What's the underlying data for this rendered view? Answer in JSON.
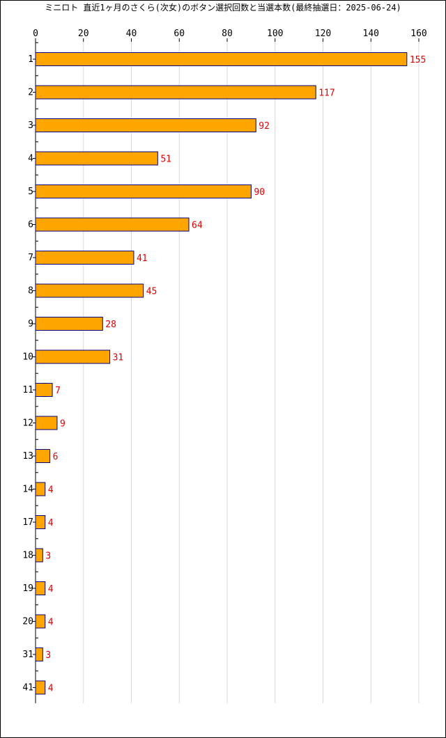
{
  "chart_data": {
    "type": "bar",
    "orientation": "horizontal",
    "title": "ミニロト 直近1ヶ月のさくら(次女)のボタン選択回数と当選本数(最終抽選日：2025-06-24)",
    "categories": [
      "1",
      "2",
      "3",
      "4",
      "5",
      "6",
      "7",
      "8",
      "9",
      "10",
      "11",
      "12",
      "13",
      "14",
      "17",
      "18",
      "19",
      "20",
      "31",
      "41"
    ],
    "values": [
      155,
      117,
      92,
      51,
      90,
      64,
      41,
      45,
      28,
      31,
      7,
      9,
      6,
      4,
      4,
      3,
      4,
      4,
      3,
      4
    ],
    "xlim": [
      0,
      160
    ],
    "xticks": [
      "0",
      "20",
      "40",
      "60",
      "80",
      "100",
      "120",
      "140",
      "160"
    ],
    "grid": true,
    "colors": {
      "bar_fill": "#FFA500",
      "bar_stroke": "#000080",
      "value_label": "#e00000",
      "grid": "#d8d8d8"
    }
  }
}
